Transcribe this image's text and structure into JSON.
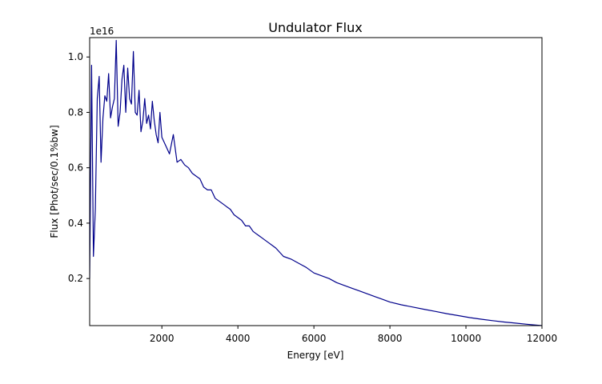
{
  "chart_data": {
    "type": "line",
    "title": "Undulator Flux",
    "xlabel": "Energy [eV]",
    "ylabel": "Flux [Phot/sec/0.1%bw]",
    "y_offset_label": "1e16",
    "xlim": [
      100,
      12000
    ],
    "ylim": [
      0.03,
      1.07
    ],
    "x_ticks": [
      2000,
      4000,
      6000,
      8000,
      10000,
      12000
    ],
    "y_ticks": [
      0.2,
      0.4,
      0.6,
      0.8,
      1.0
    ],
    "grid": false,
    "legend": "none",
    "series": [
      {
        "color": "#00008b",
        "x": [
          100,
          150,
          200,
          250,
          300,
          350,
          400,
          450,
          500,
          550,
          600,
          650,
          700,
          750,
          800,
          850,
          900,
          950,
          1000,
          1050,
          1100,
          1150,
          1200,
          1250,
          1300,
          1350,
          1400,
          1450,
          1500,
          1550,
          1600,
          1650,
          1700,
          1750,
          1800,
          1850,
          1900,
          1950,
          2000,
          2100,
          2200,
          2300,
          2400,
          2500,
          2600,
          2700,
          2800,
          2900,
          3000,
          3100,
          3200,
          3300,
          3400,
          3500,
          3600,
          3700,
          3800,
          3900,
          4000,
          4100,
          4200,
          4300,
          4400,
          4500,
          4600,
          4700,
          4800,
          4900,
          5000,
          5200,
          5400,
          5600,
          5800,
          6000,
          6200,
          6400,
          6600,
          6800,
          7000,
          7200,
          7400,
          7600,
          7800,
          8000,
          8300,
          8600,
          8900,
          9200,
          9500,
          9800,
          10100,
          10400,
          10700,
          11000,
          11300,
          11600,
          12000
        ],
        "y": [
          0.2,
          0.97,
          0.28,
          0.45,
          0.85,
          0.93,
          0.62,
          0.78,
          0.86,
          0.84,
          0.94,
          0.78,
          0.82,
          0.85,
          1.06,
          0.75,
          0.8,
          0.92,
          0.97,
          0.8,
          0.96,
          0.85,
          0.83,
          1.02,
          0.8,
          0.79,
          0.88,
          0.73,
          0.77,
          0.85,
          0.76,
          0.79,
          0.74,
          0.84,
          0.77,
          0.72,
          0.69,
          0.8,
          0.71,
          0.68,
          0.65,
          0.72,
          0.62,
          0.63,
          0.61,
          0.6,
          0.58,
          0.57,
          0.56,
          0.53,
          0.52,
          0.52,
          0.49,
          0.48,
          0.47,
          0.46,
          0.45,
          0.43,
          0.42,
          0.41,
          0.39,
          0.39,
          0.37,
          0.36,
          0.35,
          0.34,
          0.33,
          0.32,
          0.31,
          0.28,
          0.27,
          0.255,
          0.24,
          0.22,
          0.21,
          0.2,
          0.185,
          0.175,
          0.165,
          0.155,
          0.145,
          0.135,
          0.125,
          0.115,
          0.105,
          0.097,
          0.089,
          0.081,
          0.073,
          0.066,
          0.059,
          0.053,
          0.048,
          0.043,
          0.039,
          0.035,
          0.03
        ]
      }
    ]
  }
}
